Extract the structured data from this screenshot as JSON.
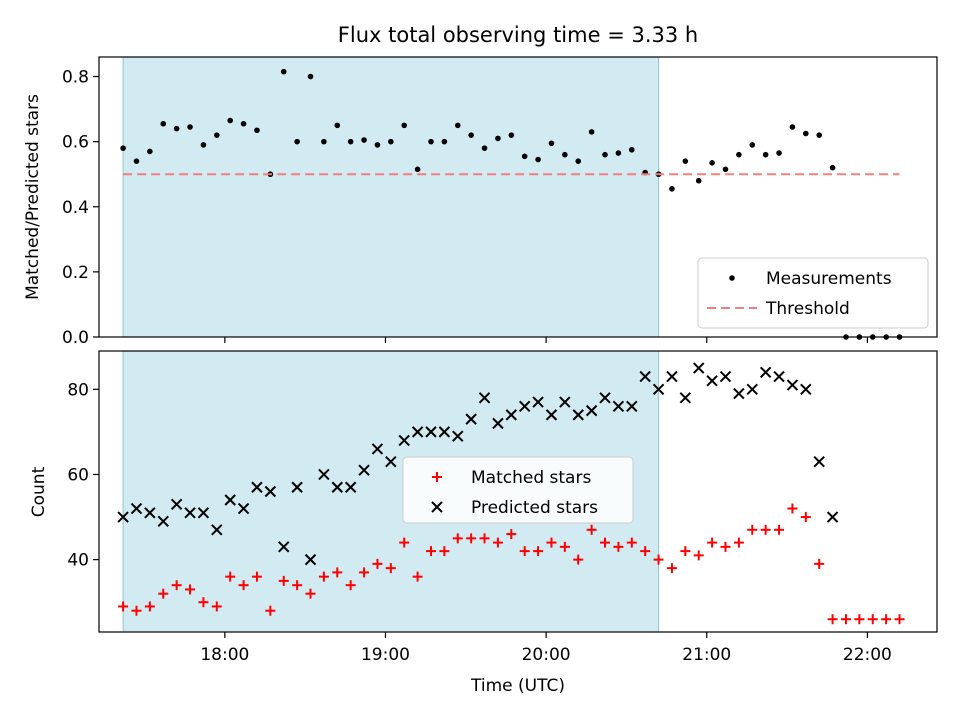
{
  "chart_data": [
    {
      "type": "scatter",
      "title": "Flux total observing time = 3.33 h",
      "xlabel": "",
      "ylabel": "Matched/Predicted stars",
      "ylim": [
        0,
        0.86
      ],
      "yticks": [
        0.0,
        0.2,
        0.4,
        0.6,
        0.8
      ],
      "ytick_labels": [
        "0.0",
        "0.2",
        "0.4",
        "0.6",
        "0.8"
      ],
      "xlim": [
        "17:13",
        "22:26"
      ],
      "xticks": [
        "18:00",
        "19:00",
        "20:00",
        "21:00",
        "22:00"
      ],
      "shaded_region": {
        "start": "17:22",
        "end": "20:42",
        "color": "#add8e6"
      },
      "legend": {
        "placement": "lower-right",
        "entries": [
          "Measurements",
          "Threshold"
        ]
      },
      "series": [
        {
          "name": "Measurements",
          "marker": "dot",
          "color": "#000000",
          "x": [
            "17:22",
            "17:27",
            "17:32",
            "17:37",
            "17:42",
            "17:47",
            "17:52",
            "17:57",
            "18:02",
            "18:07",
            "18:12",
            "18:17",
            "18:22",
            "18:27",
            "18:32",
            "18:37",
            "18:42",
            "18:47",
            "18:52",
            "18:57",
            "19:02",
            "19:07",
            "19:12",
            "19:17",
            "19:22",
            "19:27",
            "19:32",
            "19:37",
            "19:42",
            "19:47",
            "19:52",
            "19:57",
            "20:02",
            "20:07",
            "20:12",
            "20:17",
            "20:22",
            "20:27",
            "20:32",
            "20:37",
            "20:42",
            "20:47",
            "20:52",
            "20:57",
            "21:02",
            "21:07",
            "21:12",
            "21:17",
            "21:22",
            "21:27",
            "21:32",
            "21:37",
            "21:42",
            "21:47",
            "21:52",
            "21:57",
            "22:02",
            "22:07",
            "22:12"
          ],
          "y": [
            0.58,
            0.54,
            0.57,
            0.655,
            0.64,
            0.645,
            0.59,
            0.62,
            0.665,
            0.655,
            0.635,
            0.5,
            0.815,
            0.6,
            0.8,
            0.6,
            0.65,
            0.6,
            0.605,
            0.59,
            0.6,
            0.65,
            0.515,
            0.6,
            0.6,
            0.65,
            0.62,
            0.58,
            0.61,
            0.62,
            0.555,
            0.545,
            0.595,
            0.56,
            0.54,
            0.63,
            0.56,
            0.565,
            0.575,
            0.505,
            0.5,
            0.455,
            0.54,
            0.48,
            0.535,
            0.515,
            0.56,
            0.59,
            0.56,
            0.565,
            0.645,
            0.625,
            0.62,
            0.52,
            0.0,
            0.0,
            0.0,
            0.0,
            0.0
          ]
        },
        {
          "name": "Threshold",
          "marker": "dashed-line",
          "color": "#f08080",
          "x": [
            "17:22",
            "22:12"
          ],
          "y": [
            0.5,
            0.5
          ]
        }
      ]
    },
    {
      "type": "scatter",
      "title": "",
      "xlabel": "Time (UTC)",
      "ylabel": "Count",
      "ylim": [
        23,
        89
      ],
      "yticks": [
        40,
        60,
        80
      ],
      "ytick_labels": [
        "40",
        "60",
        "80"
      ],
      "xlim": [
        "17:13",
        "22:26"
      ],
      "xticks": [
        "18:00",
        "19:00",
        "20:00",
        "21:00",
        "22:00"
      ],
      "xtick_labels": [
        "18:00",
        "19:00",
        "20:00",
        "21:00",
        "22:00"
      ],
      "shaded_region": {
        "start": "17:22",
        "end": "20:42",
        "color": "#add8e6"
      },
      "legend": {
        "placement": "center",
        "entries": [
          "Matched stars",
          "Predicted stars"
        ]
      },
      "series": [
        {
          "name": "Matched stars",
          "marker": "plus",
          "color": "#ff0000",
          "x": [
            "17:22",
            "17:27",
            "17:32",
            "17:37",
            "17:42",
            "17:47",
            "17:52",
            "17:57",
            "18:02",
            "18:07",
            "18:12",
            "18:17",
            "18:22",
            "18:27",
            "18:32",
            "18:37",
            "18:42",
            "18:47",
            "18:52",
            "18:57",
            "19:02",
            "19:07",
            "19:12",
            "19:17",
            "19:22",
            "19:27",
            "19:32",
            "19:37",
            "19:42",
            "19:47",
            "19:52",
            "19:57",
            "20:02",
            "20:07",
            "20:12",
            "20:17",
            "20:22",
            "20:27",
            "20:32",
            "20:37",
            "20:42",
            "20:47",
            "20:52",
            "20:57",
            "21:02",
            "21:07",
            "21:12",
            "21:17",
            "21:22",
            "21:27",
            "21:32",
            "21:37",
            "21:42",
            "21:47",
            "21:52",
            "21:57",
            "22:02",
            "22:07",
            "22:12"
          ],
          "y": [
            29,
            28,
            29,
            32,
            34,
            33,
            30,
            29,
            36,
            34,
            36,
            28,
            35,
            34,
            32,
            36,
            37,
            34,
            37,
            39,
            38,
            44,
            36,
            42,
            42,
            45,
            45,
            45,
            44,
            46,
            42,
            42,
            44,
            43,
            40,
            47,
            44,
            43,
            44,
            42,
            40,
            38,
            42,
            41,
            44,
            43,
            44,
            47,
            47,
            47,
            52,
            50,
            39,
            26,
            26,
            26,
            26,
            26,
            26
          ]
        },
        {
          "name": "Predicted stars",
          "marker": "x",
          "color": "#000000",
          "x": [
            "17:22",
            "17:27",
            "17:32",
            "17:37",
            "17:42",
            "17:47",
            "17:52",
            "17:57",
            "18:02",
            "18:07",
            "18:12",
            "18:17",
            "18:22",
            "18:27",
            "18:32",
            "18:37",
            "18:42",
            "18:47",
            "18:52",
            "18:57",
            "19:02",
            "19:07",
            "19:12",
            "19:17",
            "19:22",
            "19:27",
            "19:32",
            "19:37",
            "19:42",
            "19:47",
            "19:52",
            "19:57",
            "20:02",
            "20:07",
            "20:12",
            "20:17",
            "20:22",
            "20:27",
            "20:32",
            "20:37",
            "20:42",
            "20:47",
            "20:52",
            "20:57",
            "21:02",
            "21:07",
            "21:12",
            "21:17",
            "21:22",
            "21:27",
            "21:32",
            "21:37",
            "21:42",
            "21:47"
          ],
          "y": [
            50,
            52,
            51,
            49,
            53,
            51,
            51,
            47,
            54,
            52,
            57,
            56,
            43,
            57,
            40,
            60,
            57,
            57,
            61,
            66,
            63,
            68,
            70,
            70,
            70,
            69,
            73,
            78,
            72,
            74,
            76,
            77,
            74,
            77,
            74,
            75,
            78,
            76,
            76,
            83,
            80,
            83,
            78,
            85,
            82,
            83,
            79,
            80,
            84,
            83,
            81,
            80,
            63,
            50
          ]
        }
      ]
    }
  ]
}
